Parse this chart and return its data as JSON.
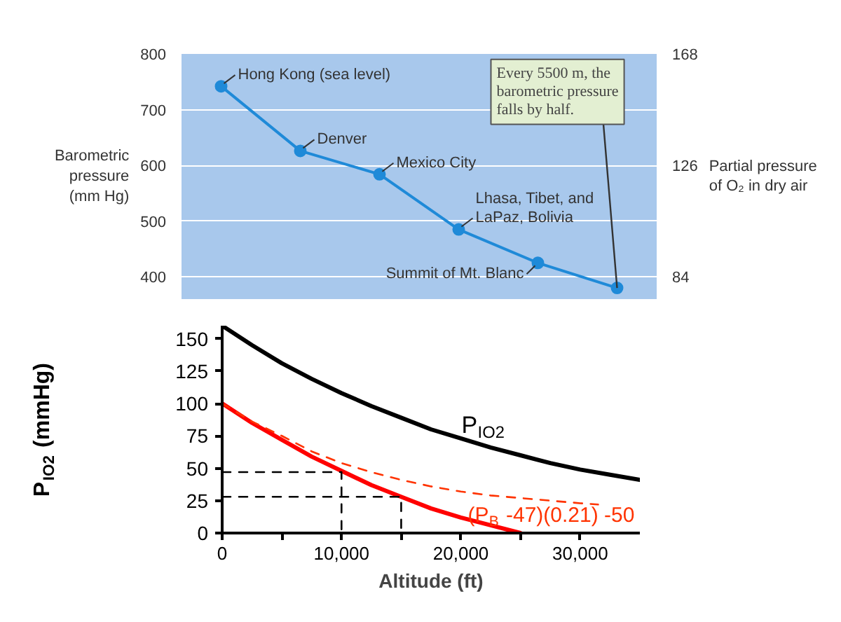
{
  "chart_data": [
    {
      "type": "line",
      "ylabel": "Barometric\npressure\n(mm Hg)",
      "y2label": "Partial pressure\nof O₂ in dry air",
      "categories": [
        null,
        null,
        null,
        null,
        null,
        null
      ],
      "series": [
        {
          "color": "#1f8ad8",
          "values": [
            742,
            626,
            584,
            485,
            425,
            380
          ]
        }
      ],
      "ylim": [
        360,
        800
      ],
      "yticks": [
        400,
        500,
        600,
        700,
        800
      ],
      "y2lim": [
        75.6,
        168
      ],
      "y2ticks": [
        84,
        126,
        168
      ],
      "grid": "y",
      "marker": "circle",
      "line_style": "solid",
      "annotations": [
        "Hong Kong (sea level)",
        "Denver",
        "Mexico City",
        "Lhasa, Tibet, and\nLaPaz, Bolivia",
        "Summit of Mt. Blanc",
        "Every 5500 m, the\nbarometric pressure\nfalls by half."
      ]
    },
    {
      "type": "line",
      "xlabel": "Altitude (ft)",
      "ylabel": "P$_{IO2}$ (mmHg)",
      "x": [
        0,
        2500,
        5000,
        7500,
        10000,
        12500,
        15000,
        17500,
        20000,
        22500,
        25000,
        27500,
        30000,
        32500,
        35000
      ],
      "series": [
        {
          "name": "P$_{IO2}$",
          "color": "#000000",
          "values": [
            160,
            145,
            131,
            119,
            108,
            98,
            89,
            80,
            73,
            66,
            60,
            54,
            49,
            45,
            41
          ]
        },
        {
          "color": "#ff0000",
          "x": [
            0,
            2500,
            5000,
            7500,
            10000,
            12500,
            15000,
            17500,
            20000,
            22500,
            25000
          ],
          "values": [
            100,
            85,
            72,
            59,
            48,
            37,
            28,
            19,
            12,
            6,
            0
          ]
        },
        {
          "name": "(P$_{B}$ -47)(0.21) -50",
          "color": "#ff3300",
          "line_style": "dashed",
          "x": [
            0,
            2500,
            5000,
            7500,
            10000,
            12500,
            15000,
            17500,
            20000,
            22500,
            25000,
            27500,
            30000,
            31500
          ],
          "values": [
            100,
            86,
            75,
            63,
            54,
            47,
            41,
            36,
            32,
            29,
            27,
            25,
            23,
            22
          ]
        },
        {
          "color": "#000000",
          "line_style": "dashed",
          "x": [
            0,
            10000,
            10000
          ],
          "values": [
            47,
            47,
            0
          ]
        },
        {
          "color": "#000000",
          "line_style": "dashed",
          "x": [
            0,
            15000,
            15000
          ],
          "values": [
            28,
            28,
            0
          ]
        }
      ],
      "xlim": [
        0,
        35000
      ],
      "xticks": [
        0,
        {
          "value": 5000,
          "label": null
        },
        {
          "value": 10000,
          "label": "10,000"
        },
        {
          "value": 15000,
          "label": null
        },
        {
          "value": 20000,
          "label": "20,000"
        },
        {
          "value": 25000,
          "label": null
        },
        {
          "value": 30000,
          "label": "30,000"
        }
      ],
      "ylim": [
        0,
        160
      ],
      "yticks": [
        0,
        25,
        50,
        75,
        100,
        125,
        150
      ],
      "grid": false,
      "marker": "none",
      "line_style": "solid"
    }
  ]
}
